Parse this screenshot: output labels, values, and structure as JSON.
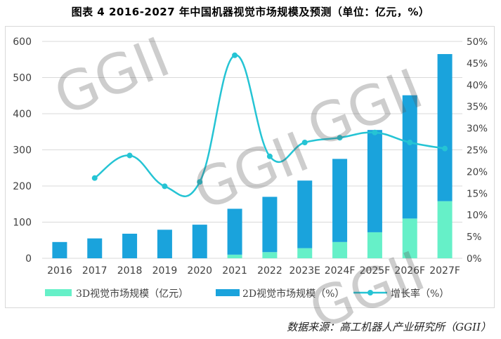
{
  "title": "图表 4   2016-2027 年中国机器视觉市场规模及预测（单位：亿元，%）",
  "source": "数据来源：高工机器人产业研究所（GGII）",
  "watermark": "GGII",
  "colors": {
    "bar3d": "#66f0c8",
    "bar2d": "#1aa3dc",
    "line": "#25c4d4",
    "grid": "#d9d9d9",
    "text": "#404040"
  },
  "chart_data": {
    "type": "bar",
    "stacked": true,
    "categories": [
      "2016",
      "2017",
      "2018",
      "2019",
      "2020",
      "2021",
      "2022",
      "2023E",
      "2024F",
      "2025F",
      "2026F",
      "2027F"
    ],
    "series": [
      {
        "name": "3D视觉市场规模（亿元）",
        "type": "bar",
        "axis": "left",
        "values": [
          0,
          0,
          0,
          0,
          0,
          10,
          17,
          28,
          45,
          72,
          110,
          158
        ]
      },
      {
        "name": "2D视觉市场规模（%）",
        "type": "bar",
        "axis": "left",
        "values": [
          45,
          55,
          68,
          79,
          93,
          127,
          153,
          187,
          230,
          283,
          341,
          407
        ]
      },
      {
        "name": "增长率（%）",
        "type": "line",
        "axis": "right",
        "values": [
          null,
          18.5,
          23.7,
          16.6,
          17.6,
          46.8,
          23.5,
          26.7,
          27.8,
          29.0,
          26.7,
          25.3
        ]
      }
    ],
    "yleft": {
      "min": 0,
      "max": 600,
      "ticks": [
        "0",
        "100",
        "200",
        "300",
        "400",
        "500",
        "600"
      ]
    },
    "yright": {
      "min": 0,
      "max": 50,
      "ticks": [
        "0%",
        "5%",
        "10%",
        "15%",
        "20%",
        "25%",
        "30%",
        "35%",
        "40%",
        "45%",
        "50%"
      ]
    },
    "legend_position": "bottom"
  }
}
